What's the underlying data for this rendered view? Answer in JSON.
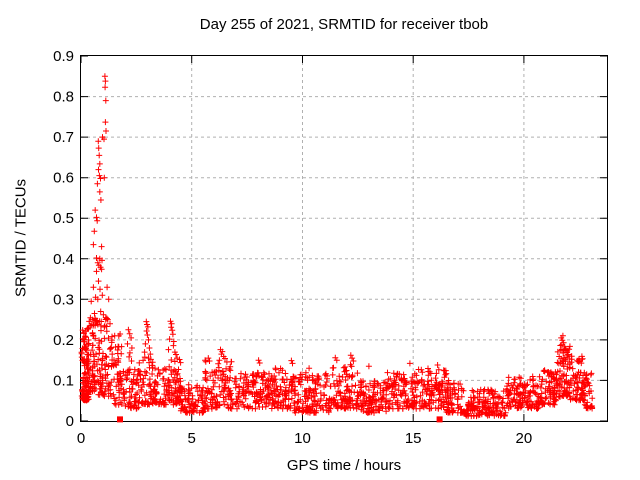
{
  "chart_data": {
    "type": "scatter",
    "title": "Day 255 of 2021, SRMTID for receiver tbob",
    "xlabel": "GPS time / hours",
    "ylabel": "SRMTID / TECUs",
    "xlim": [
      0,
      23.75
    ],
    "ylim": [
      0,
      0.9
    ],
    "xticks": [
      0,
      5,
      10,
      15,
      20
    ],
    "xtick_labels": [
      "0",
      "5",
      "10",
      "15",
      "20"
    ],
    "yticks": [
      0,
      0.1,
      0.2,
      0.3,
      0.4,
      0.5,
      0.6,
      0.7,
      0.8,
      0.9
    ],
    "ytick_labels": [
      "0",
      "0.1",
      "0.2",
      "0.3",
      "0.4",
      "0.5",
      "0.6",
      "0.7",
      "0.8",
      "0.9"
    ],
    "grid": true,
    "grid_color": "#b0b0b0",
    "border_color": "#000000",
    "text_color": "#000000",
    "marker_color": "#ff0000",
    "seed": 20210255,
    "series": [
      {
        "name": "srmtid_scatter",
        "marker": "plus",
        "color": "#ff0000",
        "feature_points": [
          [
            0.41,
            0.235
          ],
          [
            0.46,
            0.295
          ],
          [
            0.51,
            0.25
          ],
          [
            0.56,
            0.33
          ],
          [
            0.56,
            0.435
          ],
          [
            0.6,
            0.468
          ],
          [
            0.61,
            0.265
          ],
          [
            0.64,
            0.52
          ],
          [
            0.66,
            0.305
          ],
          [
            0.7,
            0.369
          ],
          [
            0.7,
            0.402
          ],
          [
            0.7,
            0.502
          ],
          [
            0.73,
            0.494
          ],
          [
            0.74,
            0.585
          ],
          [
            0.76,
            0.3
          ],
          [
            0.76,
            0.39
          ],
          [
            0.78,
            0.69
          ],
          [
            0.79,
            0.345
          ],
          [
            0.79,
            0.62
          ],
          [
            0.8,
            0.673
          ],
          [
            0.81,
            0.384
          ],
          [
            0.82,
            0.655
          ],
          [
            0.83,
            0.605
          ],
          [
            0.85,
            0.4
          ],
          [
            0.85,
            0.565
          ],
          [
            0.85,
            0.634
          ],
          [
            0.86,
            0.325
          ],
          [
            0.88,
            0.379
          ],
          [
            0.88,
            0.598
          ],
          [
            0.89,
            0.27
          ],
          [
            0.9,
            0.545
          ],
          [
            0.93,
            0.374
          ],
          [
            0.93,
            0.43
          ],
          [
            0.95,
            0.396
          ],
          [
            0.96,
            0.31
          ],
          [
            0.97,
            0.7
          ],
          [
            1.01,
            0.262
          ],
          [
            1.04,
            0.695
          ],
          [
            1.05,
            0.6
          ],
          [
            1.08,
            0.85
          ],
          [
            1.09,
            0.823
          ],
          [
            1.1,
            0.737
          ],
          [
            1.1,
            0.838
          ],
          [
            1.12,
            0.255
          ],
          [
            1.12,
            0.79
          ],
          [
            1.13,
            0.715
          ],
          [
            1.18,
            0.33
          ],
          [
            1.21,
            0.25
          ],
          [
            1.25,
            0.3
          ],
          [
            1.31,
            0.24
          ],
          [
            2.1,
            0.19
          ],
          [
            2.14,
            0.225
          ],
          [
            2.17,
            0.158
          ],
          [
            2.2,
            0.215
          ],
          [
            2.21,
            0.168
          ],
          [
            2.26,
            0.205
          ],
          [
            2.28,
            0.148
          ],
          [
            2.3,
            0.18
          ],
          [
            2.87,
            0.17
          ],
          [
            2.91,
            0.19
          ],
          [
            2.95,
            0.245
          ],
          [
            2.96,
            0.222
          ],
          [
            2.98,
            0.238
          ],
          [
            3.0,
            0.212
          ],
          [
            3.02,
            0.232
          ],
          [
            3.05,
            0.155
          ],
          [
            3.05,
            0.2
          ],
          [
            3.09,
            0.18
          ],
          [
            3.13,
            0.165
          ],
          [
            3.95,
            0.176
          ],
          [
            4.0,
            0.202
          ],
          [
            4.04,
            0.246
          ],
          [
            4.07,
            0.231
          ],
          [
            4.09,
            0.24
          ],
          [
            4.12,
            0.224
          ],
          [
            4.15,
            0.214
          ],
          [
            4.17,
            0.186
          ],
          [
            4.19,
            0.196
          ],
          [
            4.24,
            0.17
          ],
          [
            4.29,
            0.164
          ],
          [
            4.34,
            0.155
          ],
          [
            5.75,
            0.155
          ],
          [
            5.8,
            0.148
          ],
          [
            6.25,
            0.15
          ],
          [
            6.3,
            0.176
          ],
          [
            6.34,
            0.165
          ],
          [
            6.38,
            0.171
          ],
          [
            6.44,
            0.159
          ],
          [
            6.5,
            0.154
          ],
          [
            8.02,
            0.15
          ],
          [
            8.07,
            0.143
          ],
          [
            9.5,
            0.149
          ],
          [
            9.55,
            0.142
          ],
          [
            10.3,
            0.13
          ],
          [
            11.48,
            0.156
          ],
          [
            11.55,
            0.15
          ],
          [
            12.18,
            0.162
          ],
          [
            12.24,
            0.155
          ],
          [
            12.3,
            0.148
          ],
          [
            13.0,
            0.135
          ],
          [
            14.85,
            0.142
          ],
          [
            16.1,
            0.138
          ],
          [
            21.59,
            0.159
          ],
          [
            21.64,
            0.174
          ],
          [
            21.68,
            0.205
          ],
          [
            21.71,
            0.188
          ],
          [
            21.73,
            0.199
          ],
          [
            21.76,
            0.21
          ],
          [
            21.79,
            0.193
          ],
          [
            21.84,
            0.183
          ],
          [
            21.89,
            0.178
          ],
          [
            21.94,
            0.169
          ],
          [
            22.0,
            0.164
          ],
          [
            22.05,
            0.153
          ]
        ],
        "band_format": [
          "x_start",
          "x_end",
          "count",
          "y_min",
          "y_max"
        ],
        "noise_bands": [
          [
            0.02,
            0.35,
            100,
            0.05,
            0.23
          ],
          [
            0.35,
            0.75,
            55,
            0.07,
            0.26
          ],
          [
            0.75,
            1.45,
            85,
            0.06,
            0.26
          ],
          [
            1.45,
            1.85,
            45,
            0.04,
            0.22
          ],
          [
            1.85,
            2.6,
            60,
            0.03,
            0.13
          ],
          [
            2.6,
            3.35,
            65,
            0.04,
            0.16
          ],
          [
            3.35,
            3.85,
            40,
            0.04,
            0.13
          ],
          [
            3.85,
            4.5,
            70,
            0.04,
            0.16
          ],
          [
            4.5,
            5.6,
            85,
            0.02,
            0.09
          ],
          [
            5.6,
            7.0,
            115,
            0.03,
            0.15
          ],
          [
            7.0,
            8.6,
            125,
            0.03,
            0.12
          ],
          [
            8.6,
            9.6,
            85,
            0.03,
            0.13
          ],
          [
            9.6,
            11.2,
            130,
            0.02,
            0.12
          ],
          [
            11.2,
            12.5,
            110,
            0.03,
            0.14
          ],
          [
            12.5,
            13.8,
            110,
            0.02,
            0.1
          ],
          [
            13.8,
            15.2,
            115,
            0.03,
            0.12
          ],
          [
            15.2,
            16.5,
            105,
            0.03,
            0.13
          ],
          [
            16.5,
            17.2,
            65,
            0.02,
            0.1
          ],
          [
            17.2,
            19.2,
            150,
            0.012,
            0.08
          ],
          [
            19.2,
            20.8,
            130,
            0.03,
            0.11
          ],
          [
            20.8,
            21.5,
            70,
            0.04,
            0.13
          ],
          [
            21.5,
            22.1,
            75,
            0.06,
            0.19
          ],
          [
            22.1,
            22.7,
            65,
            0.05,
            0.16
          ],
          [
            22.7,
            23.1,
            40,
            0.03,
            0.12
          ]
        ]
      },
      {
        "name": "axis_event_markers",
        "marker": "filled-square",
        "color": "#ff0000",
        "points": [
          [
            1.76,
            0.004
          ],
          [
            16.19,
            0.004
          ]
        ]
      }
    ]
  }
}
